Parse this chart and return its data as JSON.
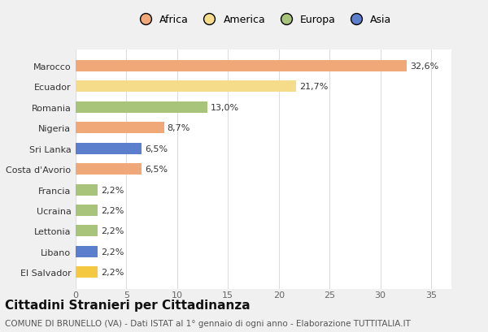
{
  "categories": [
    "El Salvador",
    "Libano",
    "Lettonia",
    "Ucraina",
    "Francia",
    "Costa d'Avorio",
    "Sri Lanka",
    "Nigeria",
    "Romania",
    "Ecuador",
    "Marocco"
  ],
  "values": [
    2.2,
    2.2,
    2.2,
    2.2,
    2.2,
    6.5,
    6.5,
    8.7,
    13.0,
    21.7,
    32.6
  ],
  "labels": [
    "2,2%",
    "2,2%",
    "2,2%",
    "2,2%",
    "2,2%",
    "6,5%",
    "6,5%",
    "8,7%",
    "13,0%",
    "21,7%",
    "32,6%"
  ],
  "colors": [
    "#f5c842",
    "#5b7fcc",
    "#a8c47a",
    "#a8c47a",
    "#a8c47a",
    "#f0a878",
    "#5b7fcc",
    "#f0a878",
    "#a8c47a",
    "#f5dc8a",
    "#f0a878"
  ],
  "continent_colors": {
    "Africa": "#f0a878",
    "America": "#f5dc8a",
    "Europa": "#a8c47a",
    "Asia": "#5b7fcc"
  },
  "xlim": [
    0,
    37
  ],
  "xticks": [
    0,
    5,
    10,
    15,
    20,
    25,
    30,
    35
  ],
  "title": "Cittadini Stranieri per Cittadinanza",
  "subtitle": "COMUNE DI BRUNELLO (VA) - Dati ISTAT al 1° gennaio di ogni anno - Elaborazione TUTTITALIA.IT",
  "bg_color": "#f0f0f0",
  "plot_bg_color": "#ffffff",
  "bar_height": 0.55,
  "label_fontsize": 8,
  "title_fontsize": 11,
  "subtitle_fontsize": 7.5
}
